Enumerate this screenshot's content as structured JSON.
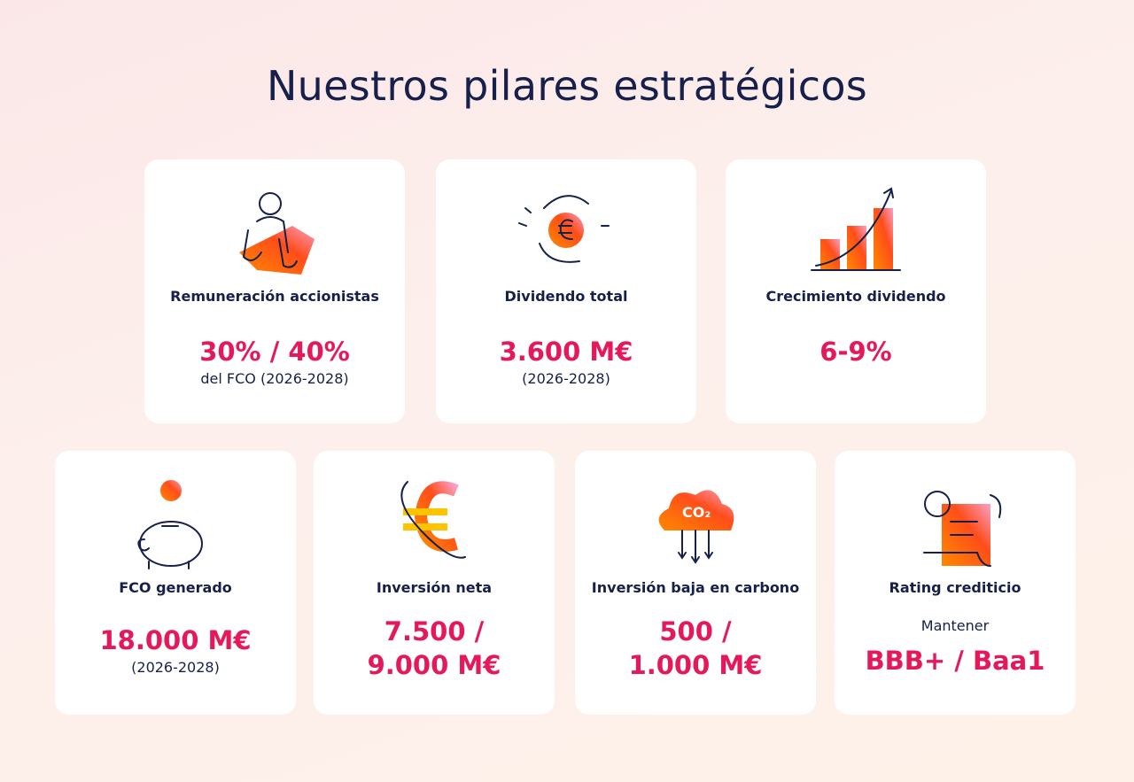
{
  "title": "Nuestros pilares estratégicos",
  "cards": [
    {
      "label": "Remuneración accionistas",
      "value_lines": [
        "30% / 40%"
      ],
      "note": "del FCO (2026-2028)"
    },
    {
      "label": "Dividendo total",
      "value_lines": [
        "3.600 M€"
      ],
      "note": "(2026-2028)"
    },
    {
      "label": "Crecimiento dividendo",
      "value_lines": [
        "6-9%"
      ]
    },
    {
      "label": "FCO generado",
      "value_lines": [
        "18.000 M€"
      ],
      "note": "(2026-2028)"
    },
    {
      "label": "Inversión neta",
      "value_lines": [
        "7.500 /",
        "9.000 M€"
      ]
    },
    {
      "label": "Inversión baja en carbono",
      "value_lines": [
        "500 /",
        "1.000 M€"
      ]
    },
    {
      "label": "Rating crediticio",
      "prefix": "Mantener",
      "value_lines": [
        "BBB+ / Baa1"
      ]
    }
  ]
}
